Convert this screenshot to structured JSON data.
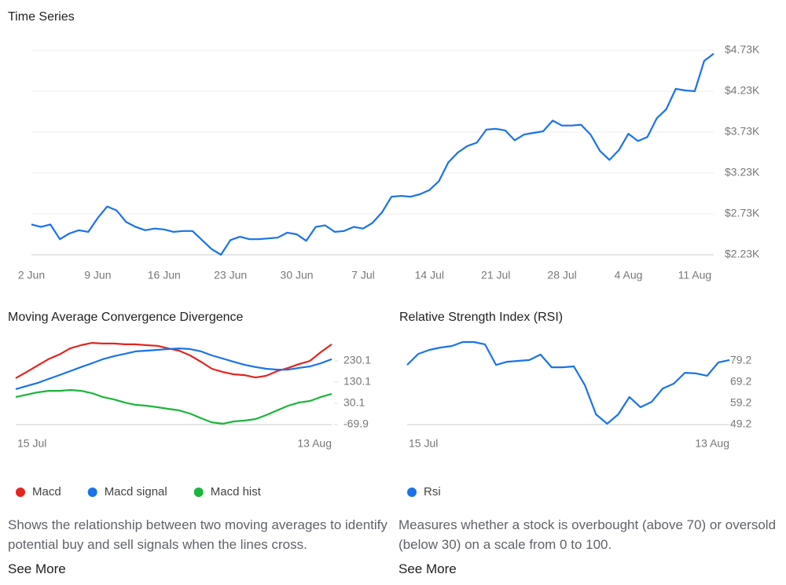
{
  "chart_data": [
    {
      "type": "line",
      "title": "Time Series",
      "color": "#1a73e8",
      "grid": true,
      "categories": [
        "2 Jun",
        null,
        null,
        null,
        null,
        null,
        null,
        "9 Jun",
        null,
        null,
        null,
        null,
        null,
        null,
        "16 Jun",
        null,
        null,
        null,
        null,
        null,
        null,
        "23 Jun",
        null,
        null,
        null,
        null,
        null,
        null,
        "30 Jun",
        null,
        null,
        null,
        null,
        null,
        null,
        "7 Jul",
        null,
        null,
        null,
        null,
        null,
        null,
        "14 Jul",
        null,
        null,
        null,
        null,
        null,
        null,
        "21 Jul",
        null,
        null,
        null,
        null,
        null,
        null,
        "28 Jul",
        null,
        null,
        null,
        null,
        null,
        null,
        "4 Aug",
        null,
        null,
        null,
        null,
        null,
        null,
        "11 Aug",
        null,
        null
      ],
      "values": [
        2600,
        2570,
        2600,
        2420,
        2490,
        2530,
        2510,
        2680,
        2820,
        2770,
        2630,
        2570,
        2530,
        2550,
        2540,
        2510,
        2520,
        2520,
        2410,
        2300,
        2230,
        2410,
        2450,
        2420,
        2420,
        2430,
        2440,
        2500,
        2480,
        2400,
        2570,
        2590,
        2510,
        2520,
        2570,
        2550,
        2620,
        2750,
        2940,
        2950,
        2940,
        2970,
        3020,
        3130,
        3360,
        3480,
        3560,
        3600,
        3760,
        3770,
        3750,
        3630,
        3700,
        3720,
        3740,
        3870,
        3810,
        3810,
        3820,
        3700,
        3500,
        3390,
        3510,
        3710,
        3620,
        3670,
        3900,
        4010,
        4260,
        4240,
        4230,
        4600,
        4690
      ],
      "ylim": [
        2230,
        4730
      ],
      "yticks": [
        {
          "value": 2230,
          "label": "$2.23K"
        },
        {
          "value": 2730,
          "label": "$2.73K"
        },
        {
          "value": 3230,
          "label": "$3.23K"
        },
        {
          "value": 3730,
          "label": "$3.73K"
        },
        {
          "value": 4230,
          "label": "$4.23K"
        },
        {
          "value": 4730,
          "label": "$4.73K"
        }
      ]
    },
    {
      "type": "line",
      "title": "Moving Average Convergence Divergence",
      "grid": false,
      "categories": [
        "15 Jul",
        null,
        null,
        null,
        null,
        null,
        null,
        null,
        null,
        null,
        null,
        null,
        null,
        null,
        null,
        null,
        null,
        null,
        null,
        null,
        null,
        null,
        null,
        null,
        null,
        null,
        null,
        null,
        null,
        "13 Aug"
      ],
      "series": [
        {
          "name": "Macd",
          "color": "#e52420",
          "values": [
            149,
            178,
            208,
            238,
            260,
            289,
            304,
            315,
            312,
            312,
            308,
            308,
            304,
            301,
            289,
            278,
            256,
            226,
            193,
            178,
            167,
            163,
            152,
            160,
            182,
            197,
            215,
            230,
            271,
            308
          ]
        },
        {
          "name": "Macd signal",
          "color": "#1a73e8",
          "values": [
            97,
            112,
            126,
            145,
            163,
            182,
            201,
            219,
            238,
            252,
            263,
            275,
            278,
            282,
            286,
            289,
            286,
            275,
            256,
            241,
            226,
            212,
            201,
            193,
            189,
            189,
            197,
            204,
            219,
            238
          ]
        },
        {
          "name": "Macd hist",
          "color": "#1bb53a",
          "values": [
            60,
            71,
            82,
            89,
            89,
            93,
            89,
            78,
            60,
            49,
            34,
            23,
            19,
            12,
            4,
            -3,
            -18,
            -40,
            -59,
            -66,
            -55,
            -51,
            -44,
            -25,
            -3,
            19,
            34,
            41,
            60,
            75
          ]
        }
      ],
      "ylim": [
        -69.9,
        350
      ],
      "yticks": [
        230.1,
        130.1,
        30.1,
        -69.9
      ],
      "description": "Shows the relationship between two moving averages to identify potential buy and sell signals when the lines cross.",
      "link": "See More"
    },
    {
      "type": "line",
      "title": "Relative Strength Index (RSI)",
      "grid": false,
      "categories": [
        "15 Jul",
        null,
        null,
        null,
        null,
        null,
        null,
        null,
        null,
        null,
        null,
        null,
        null,
        null,
        null,
        null,
        null,
        null,
        null,
        null,
        null,
        null,
        null,
        null,
        null,
        null,
        null,
        null,
        null,
        "13 Aug"
      ],
      "series": [
        {
          "name": "Rsi",
          "color": "#1a73e8",
          "values": [
            77.3,
            82.5,
            84.4,
            85.5,
            86.2,
            88.1,
            88.1,
            87.0,
            77.3,
            78.8,
            79.2,
            79.6,
            82.2,
            76.2,
            76.2,
            76.6,
            67.7,
            54.0,
            49.6,
            54.0,
            62.2,
            57.4,
            59.9,
            66.2,
            68.5,
            73.6,
            73.3,
            72.2,
            78.5,
            79.6
          ]
        }
      ],
      "ylim": [
        49.2,
        91.2
      ],
      "yticks": [
        79.2,
        69.2,
        59.2,
        49.2
      ],
      "description": "Measures whether a stock is overbought (above 70) or oversold (below 30) on a scale from 0 to 100.",
      "link": "See More"
    }
  ]
}
